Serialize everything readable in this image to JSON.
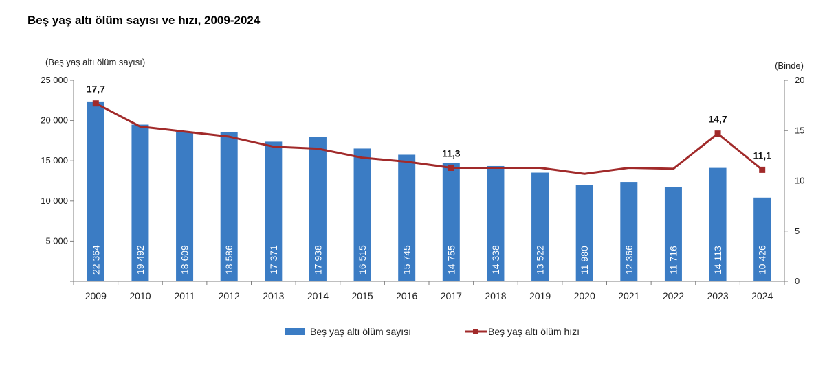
{
  "chart_data": {
    "type": "bar+line",
    "title": "Beş yaş altı ölüm sayısı ve hızı, 2009-2024",
    "left_axis_label": "(Beş yaş altı ölüm sayısı)",
    "right_axis_label": "(Binde)",
    "categories": [
      "2009",
      "2010",
      "2011",
      "2012",
      "2013",
      "2014",
      "2015",
      "2016",
      "2017",
      "2018",
      "2019",
      "2020",
      "2021",
      "2022",
      "2023",
      "2024"
    ],
    "left_ylim": [
      0,
      25000
    ],
    "left_ticks": [
      0,
      5000,
      10000,
      15000,
      20000,
      25000
    ],
    "left_tick_labels": [
      "",
      "5 000",
      "10 000",
      "15 000",
      "20 000",
      "25 000"
    ],
    "right_ylim": [
      0,
      20
    ],
    "right_ticks": [
      0,
      5,
      10,
      15,
      20
    ],
    "right_tick_labels": [
      "0",
      "5",
      "10",
      "15",
      "20"
    ],
    "series": [
      {
        "name": "Beş yaş altı ölüm sayısı",
        "type": "bar",
        "axis": "left",
        "color": "#3B7CC4",
        "values": [
          22364,
          19492,
          18609,
          18586,
          17371,
          17938,
          16515,
          15745,
          14755,
          14338,
          13522,
          11980,
          12366,
          11716,
          14113,
          10426
        ],
        "value_labels": [
          "22 364",
          "19 492",
          "18 609",
          "18 586",
          "17 371",
          "17 938",
          "16 515",
          "15 745",
          "14 755",
          "14 338",
          "13 522",
          "11 980",
          "12 366",
          "11 716",
          "14 113",
          "10 426"
        ]
      },
      {
        "name": "Beş yaş altı ölüm hızı",
        "type": "line",
        "axis": "right",
        "color": "#A12A2A",
        "values": [
          17.7,
          15.4,
          14.9,
          14.4,
          13.4,
          13.2,
          12.3,
          11.9,
          11.3,
          11.3,
          11.3,
          10.7,
          11.3,
          11.2,
          14.7,
          11.1
        ],
        "annotations": [
          {
            "index": 0,
            "label": "17,7"
          },
          {
            "index": 8,
            "label": "11,3"
          },
          {
            "index": 14,
            "label": "14,7"
          },
          {
            "index": 15,
            "label": "11,1"
          }
        ]
      }
    ],
    "legend_position": "bottom"
  }
}
